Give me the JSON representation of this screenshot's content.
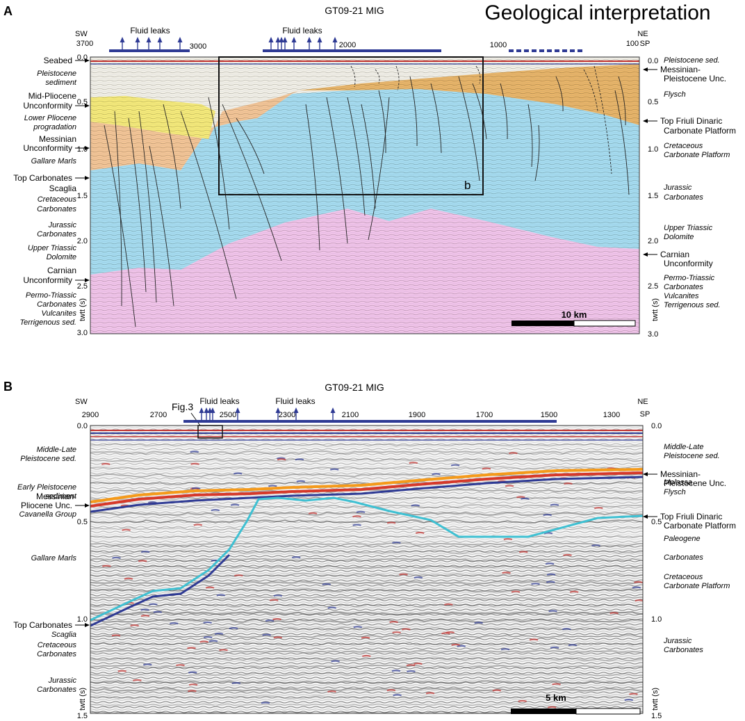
{
  "panel_a": {
    "letter": "A",
    "line_name": "GT09-21 MIG",
    "heading": "Geological interpretation",
    "dir_left": "SW",
    "dir_right": "NE",
    "sp_label": "SP",
    "sp_ticks": [
      "3700",
      "3000",
      "2000",
      "1000",
      "100"
    ],
    "leak_labels": [
      "Fluid leaks",
      "Fluid leaks"
    ],
    "twt_ticks_left": [
      "0.0",
      "0.5",
      "1.0",
      "1.5",
      "2.0",
      "2.5",
      "3.0"
    ],
    "twt_ticks_right": [
      "0.0",
      "0.5",
      "1.0",
      "1.5",
      "2.0",
      "2.5",
      "3.0"
    ],
    "axis_label": "twtt (s)",
    "scale_label": "10 km",
    "inset_label": "b",
    "left_labels": [
      {
        "text": "Seabed",
        "italic": false,
        "arrow": true
      },
      {
        "text": "Pleistocene",
        "italic": true
      },
      {
        "text": "sediment",
        "italic": true
      },
      {
        "text": "Mid-Pliocene",
        "italic": false
      },
      {
        "text": "Unconformity",
        "italic": false,
        "arrow": true
      },
      {
        "text": "Lower Pliocene",
        "italic": true
      },
      {
        "text": "progradation",
        "italic": true
      },
      {
        "text": "Messinian",
        "italic": false
      },
      {
        "text": "Unconformity",
        "italic": false,
        "arrow": true
      },
      {
        "text": "Gallare Marls",
        "italic": true
      },
      {
        "text": "Top Carbonates",
        "italic": false,
        "arrow": true
      },
      {
        "text": "Scaglia",
        "italic": false
      },
      {
        "text": "Cretaceous",
        "italic": true
      },
      {
        "text": "Carbonates",
        "italic": true
      },
      {
        "text": "Jurassic",
        "italic": true
      },
      {
        "text": "Carbonates",
        "italic": true
      },
      {
        "text": "Upper Triassic",
        "italic": true
      },
      {
        "text": "Dolomite",
        "italic": true
      },
      {
        "text": "Carnian",
        "italic": false
      },
      {
        "text": "Unconformity",
        "italic": false,
        "arrow": true
      },
      {
        "text": "Permo-Triassic",
        "italic": true
      },
      {
        "text": "Carbonates",
        "italic": true
      },
      {
        "text": "Vulcanites",
        "italic": true
      },
      {
        "text": "Terrigenous sed.",
        "italic": true
      }
    ],
    "right_labels": [
      {
        "text": "Pleistocene sed.",
        "italic": true
      },
      {
        "text": "Messinian-",
        "italic": false,
        "arrow": true
      },
      {
        "text": "Pleistocene Unc.",
        "italic": false
      },
      {
        "text": "Flysch",
        "italic": true
      },
      {
        "text": "Top Friuli Dinaric",
        "italic": false,
        "arrow": true
      },
      {
        "text": "Carbonate Platform",
        "italic": false
      },
      {
        "text": "Cretaceous",
        "italic": true
      },
      {
        "text": "Carbonate Platform",
        "italic": true
      },
      {
        "text": "Jurassic",
        "italic": true
      },
      {
        "text": "Carbonates",
        "italic": true
      },
      {
        "text": "Upper Triassic",
        "italic": true
      },
      {
        "text": "Dolomite",
        "italic": true
      },
      {
        "text": "Carnian",
        "italic": false,
        "arrow": true
      },
      {
        "text": "Unconformity",
        "italic": false
      },
      {
        "text": "Permo-Triassic",
        "italic": true
      },
      {
        "text": "Carbonates",
        "italic": true
      },
      {
        "text": "Vulcanites",
        "italic": true
      },
      {
        "text": "Terrigenous sed.",
        "italic": true
      }
    ]
  },
  "panel_b": {
    "letter": "B",
    "line_name": "GT09-21 MIG",
    "dir_left": "SW",
    "dir_right": "NE",
    "sp_label": "SP",
    "sp_ticks": [
      "2900",
      "2700",
      "2500",
      "2300",
      "2100",
      "1900",
      "1700",
      "1500",
      "1300"
    ],
    "leak_labels": [
      "Fluid leaks",
      "Fluid leaks"
    ],
    "fig_ref": "Fig.3",
    "twt_ticks_left": [
      "0.0",
      "0.5",
      "1.0",
      "1.5"
    ],
    "twt_ticks_right": [
      "0.0",
      "0.5",
      "1.0",
      "1.5"
    ],
    "axis_label": "twtt (s)",
    "scale_label": "5 km",
    "left_labels": [
      {
        "text": "Middle-Late",
        "italic": true
      },
      {
        "text": "Pleistocene sed.",
        "italic": true
      },
      {
        "text": "Early Pleistocene",
        "italic": true
      },
      {
        "text": "sediment",
        "italic": true
      },
      {
        "text": "Messinian-",
        "italic": false
      },
      {
        "text": "Pliocene Unc.",
        "italic": false,
        "arrow": true
      },
      {
        "text": "Cavanella Group",
        "italic": true
      },
      {
        "text": "Gallare Marls",
        "italic": true
      },
      {
        "text": "Top Carbonates",
        "italic": false,
        "arrow": true
      },
      {
        "text": "Scaglia",
        "italic": true
      },
      {
        "text": "Cretaceous",
        "italic": true
      },
      {
        "text": "Carbonates",
        "italic": true
      },
      {
        "text": "Jurassic",
        "italic": true
      },
      {
        "text": "Carbonates",
        "italic": true
      }
    ],
    "right_labels": [
      {
        "text": "Middle-Late",
        "italic": true
      },
      {
        "text": "Pleistocene sed.",
        "italic": true
      },
      {
        "text": "Messinian-",
        "italic": false,
        "arrow": true
      },
      {
        "text": "Pleistocene Unc.",
        "italic": false
      },
      {
        "text": "Molassa",
        "italic": true
      },
      {
        "text": "Flysch",
        "italic": true
      },
      {
        "text": "Top Friuli Dinaric",
        "italic": false,
        "arrow": true
      },
      {
        "text": "Carbonate Platform",
        "italic": false
      },
      {
        "text": "Paleogene",
        "italic": true
      },
      {
        "text": "Carbonates",
        "italic": true
      },
      {
        "text": "Cretaceous",
        "italic": true
      },
      {
        "text": "Carbonate Platform",
        "italic": true
      },
      {
        "text": "Jurassic",
        "italic": true
      },
      {
        "text": "Carbonates",
        "italic": true
      }
    ]
  },
  "colors": {
    "pleistocene": "#f1efe6",
    "flysch": "#e8b569",
    "pliocene_prog": "#f5ea7a",
    "gallare": "#f3c596",
    "carbonates": "#a6dcef",
    "triassic": "#f1c4e9",
    "leak_marker": "#2e3a94",
    "horizon_orange": "#f59a1a",
    "horizon_cyan": "#3ec0d2"
  }
}
